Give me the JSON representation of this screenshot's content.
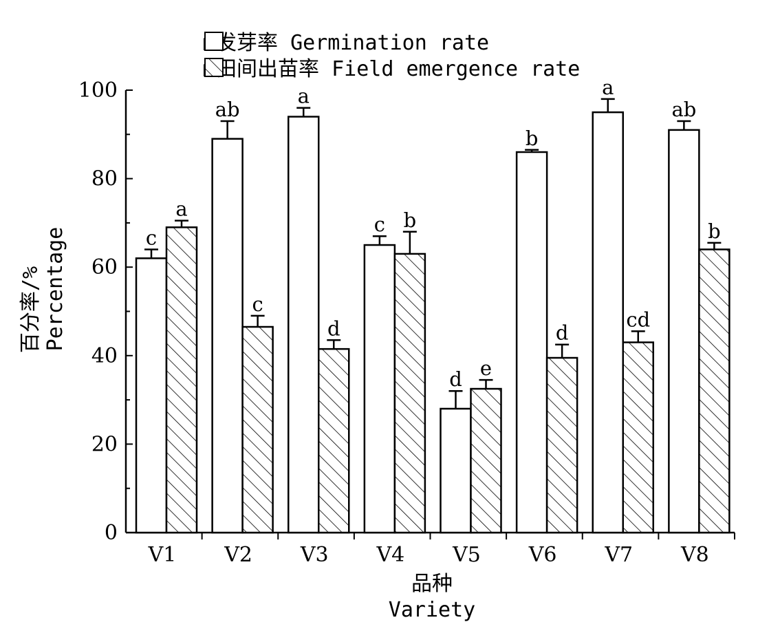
{
  "chart_data": {
    "type": "bar",
    "categories": [
      "V1",
      "V2",
      "V3",
      "V4",
      "V5",
      "V6",
      "V7",
      "V8"
    ],
    "xlabel_cn": "品种",
    "xlabel": "Variety",
    "ylabel_cn": "百分率/%",
    "ylabel": "Percentage",
    "ylim": [
      0,
      100
    ],
    "yticks": [
      0,
      20,
      40,
      60,
      80,
      100
    ],
    "legend_position": "top",
    "series": [
      {
        "name": "□发芽率 Germination rate",
        "pattern": "open",
        "values": [
          62,
          89,
          94,
          65,
          28,
          86,
          95,
          91
        ],
        "errors": [
          2,
          4,
          2,
          2,
          4,
          0.5,
          3,
          2
        ],
        "labels": [
          "c",
          "ab",
          "a",
          "c",
          "d",
          "b",
          "a",
          "ab"
        ]
      },
      {
        "name": "▨田间出苗率 Field emergence rate",
        "pattern": "hatched",
        "values": [
          69,
          46.5,
          41.5,
          63,
          32.5,
          39.5,
          43,
          64
        ],
        "errors": [
          1.5,
          2.5,
          2,
          5,
          2,
          3,
          2.5,
          1.5
        ],
        "labels": [
          "a",
          "c",
          "d",
          "b",
          "e",
          "d",
          "cd",
          "b"
        ]
      }
    ],
    "colors": {
      "bar_fill": "#ffffff",
      "stroke": "#000000"
    }
  }
}
